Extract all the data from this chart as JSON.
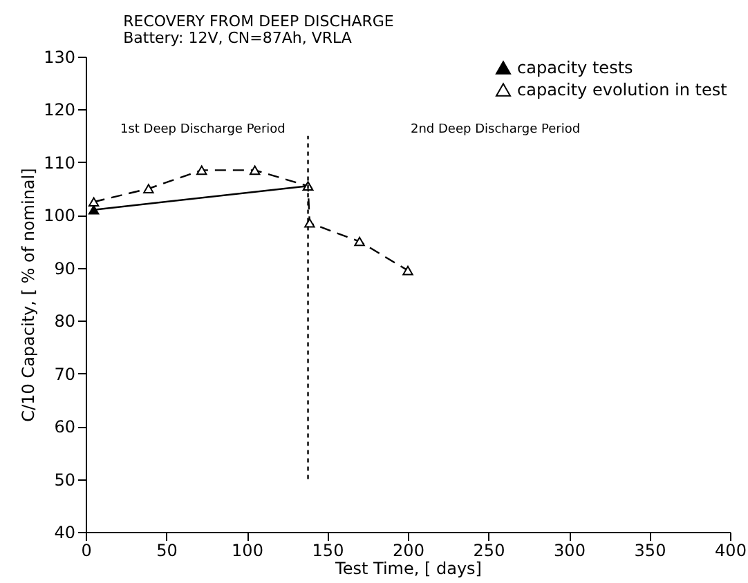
{
  "chart_data": {
    "type": "line",
    "title": "RECOVERY FROM DEEP DISCHARGE",
    "subtitle": "Battery: 12V, CN=87Ah, VRLA",
    "xlabel": "Test Time, [ days]",
    "ylabel": "C/10 Capacity, [ % of nominal]",
    "series": [
      {
        "name": "capacity tests",
        "color": "#000000",
        "marker": "triangle",
        "line_style": "solid",
        "x": [
          5,
          138
        ],
        "values": [
          101,
          105.5
        ]
      },
      {
        "name": "capacity evolution in test",
        "color": "#000000",
        "marker": "triangle",
        "line_style": "dashed",
        "x": [
          5,
          39,
          72,
          105,
          138,
          139,
          170,
          200
        ],
        "values": [
          102.5,
          105,
          108.5,
          108.5,
          105.5,
          98.5,
          95,
          89.5
        ]
      },
      {
        "color": "#000000",
        "marker": "none",
        "line_style": "dotted",
        "x": [
          138,
          138
        ],
        "values": [
          50,
          115
        ]
      }
    ],
    "annotations": [
      "1st Deep Discharge Period",
      "2nd Deep Discharge Period"
    ],
    "xlim": [
      0,
      400
    ],
    "xticks": [
      0,
      50,
      100,
      150,
      200,
      250,
      300,
      350,
      400
    ],
    "ylim": [
      40,
      130
    ],
    "yticks": [
      40,
      50,
      60,
      70,
      80,
      90,
      100,
      110,
      120,
      130
    ],
    "grid": false,
    "legend": "top right"
  }
}
